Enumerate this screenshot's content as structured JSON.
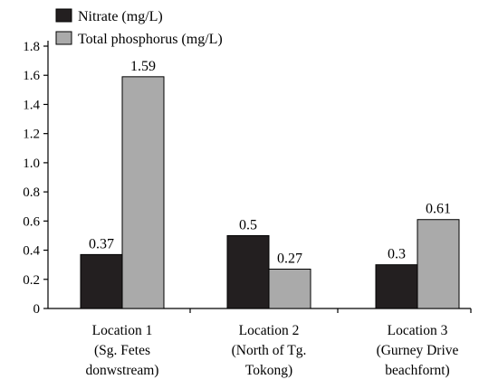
{
  "chart_data": {
    "type": "bar",
    "title": "",
    "xlabel": "",
    "ylabel": "",
    "categories": [
      [
        "Location 1",
        "(Sg. Fetes",
        "donwstream)"
      ],
      [
        "Location 2",
        "(North of Tg.",
        "Tokong)"
      ],
      [
        "Location 3",
        "(Gurney Drive",
        "beachfornt)"
      ]
    ],
    "series": [
      {
        "name": "Nitrate (mg/L)",
        "values": [
          0.37,
          0.5,
          0.3
        ],
        "labels": [
          "0.37",
          "0.5",
          "0.3"
        ],
        "color": "#231f20"
      },
      {
        "name": "Total phosphorus (mg/L)",
        "values": [
          1.59,
          0.27,
          0.61
        ],
        "labels": [
          "1.59",
          "0.27",
          "0.61"
        ],
        "color": "#aaaaaa"
      }
    ],
    "ylim": [
      0,
      1.8
    ],
    "yticks": [
      "0",
      "0.2",
      "0.4",
      "0.6",
      "0.8",
      "1.0",
      "1.2",
      "1.4",
      "1.6",
      "1.8"
    ],
    "grid": false,
    "legend_position": "top-left"
  }
}
